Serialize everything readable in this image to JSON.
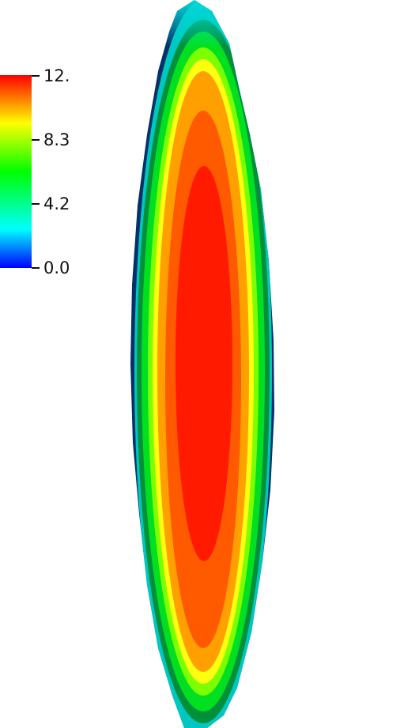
{
  "colorbar": {
    "ticks": [
      "12.",
      "8.3",
      "4.2",
      "0.0"
    ],
    "colors": [
      "#ff0000",
      "#ffff00",
      "#00ff00",
      "#00ffff",
      "#0000ff"
    ]
  },
  "field": {
    "colors": {
      "core": "#ff1a00",
      "mid": "#ff8800",
      "yellow": "#ffff00",
      "green": "#00e000",
      "darkgreen": "#008a1a",
      "cyan": "#00d8d8",
      "edge": "#002a66"
    }
  }
}
